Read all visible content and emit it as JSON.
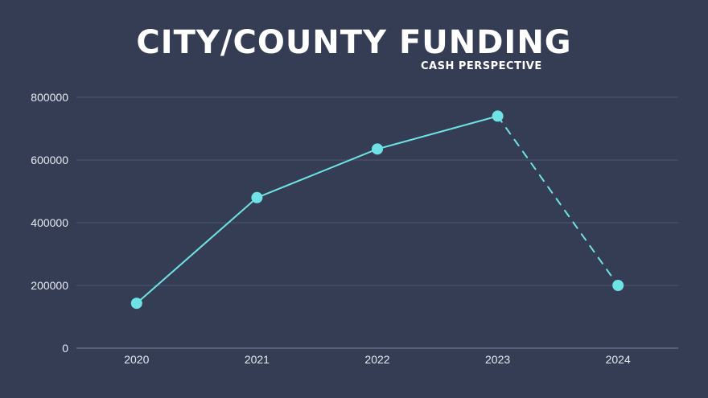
{
  "title": "City/County Funding",
  "subtitle": "Cash Perspective",
  "colors": {
    "background": "#343d54",
    "line": "#6ee2e4",
    "grid": "#4d5670",
    "text": "#e8ebf2"
  },
  "chart_data": {
    "type": "line",
    "title": "City/County Funding",
    "subtitle": "Cash Perspective",
    "xlabel": "",
    "ylabel": "",
    "categories": [
      "2020",
      "2021",
      "2022",
      "2023",
      "2024"
    ],
    "series": [
      {
        "values": [
          143000,
          480000,
          635000,
          740000,
          200000
        ],
        "line_style": [
          "solid",
          "solid",
          "solid",
          "dashed"
        ]
      }
    ],
    "ylim": [
      0,
      800000
    ],
    "yticks": [
      0,
      200000,
      400000,
      600000,
      800000
    ],
    "ytick_labels": [
      "0",
      "200000",
      "400000",
      "600000",
      "800000"
    ],
    "grid": true,
    "legend": "none"
  }
}
